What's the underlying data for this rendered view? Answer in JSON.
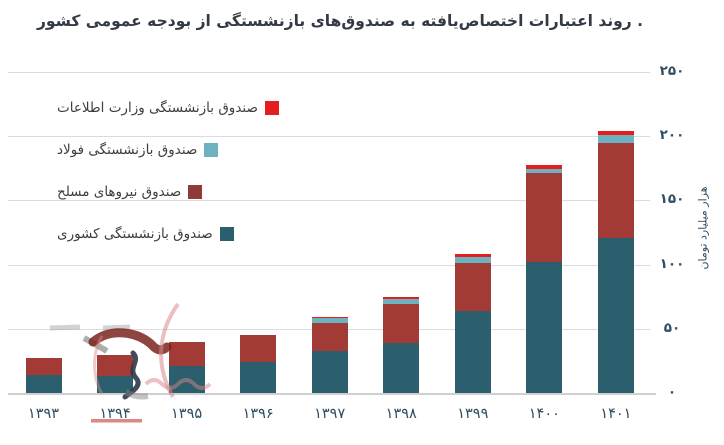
{
  "title": ". روند اعتبارات اختصاص‌یافته به صندوق‌های بازنشستگی از بودجه عمومی کشور",
  "y_axis": {
    "label": "هزار میلیارد تومان",
    "ticks": [
      {
        "value": 0,
        "label": "۰"
      },
      {
        "value": 50,
        "label": "۵۰"
      },
      {
        "value": 100,
        "label": "۱۰۰"
      },
      {
        "value": 150,
        "label": "۱۵۰"
      },
      {
        "value": 200,
        "label": "۲۰۰"
      },
      {
        "value": 250,
        "label": "۲۵۰"
      }
    ]
  },
  "legend": [
    {
      "label": "صندوق بازنشستگی وزارت اطلاعات",
      "color": "#e51d1d"
    },
    {
      "label": "صندوق بازنشستگی فولاد",
      "color": "#6cb2c0"
    },
    {
      "label": "صندوق نیروهای مسلح",
      "color": "#8f3a38"
    },
    {
      "label": "صندوق بازنشستگی کشوری",
      "color": "#2b5f6d"
    }
  ],
  "colors": {
    "grid": "#dcdcdc",
    "axis": "#cfcfcf",
    "tick_text": "#2e4d63",
    "title_text": "#323a46"
  },
  "chart_data": {
    "type": "bar",
    "stacked": true,
    "title": ". روند اعتبارات اختصاص‌یافته به صندوق‌های بازنشستگی از بودجه عمومی کشور",
    "xlabel": "",
    "ylabel": "هزار میلیارد تومان",
    "ylim": [
      0,
      250
    ],
    "grid": true,
    "legend_position": "left-inside",
    "categories": [
      "۱۳۹۳",
      "۱۳۹۴",
      "۱۳۹۵",
      "۱۳۹۶",
      "۱۳۹۷",
      "۱۳۹۸",
      "۱۳۹۹",
      "۱۴۰۰",
      "۱۴۰۱"
    ],
    "categories_latin": [
      1393,
      1394,
      1395,
      1396,
      1397,
      1398,
      1399,
      1400,
      1401
    ],
    "series": [
      {
        "name": "صندوق بازنشستگی کشوری",
        "color": "#2b5f6d",
        "values": [
          14,
          13.5,
          21,
          24,
          32.5,
          39,
          64,
          102,
          121
        ]
      },
      {
        "name": "صندوق نیروهای مسلح",
        "color": "#a23a36",
        "values": [
          13,
          16,
          19,
          21,
          22,
          30,
          37,
          69,
          74
        ]
      },
      {
        "name": "صندوق بازنشستگی فولاد",
        "color": "#6cb2c0",
        "values": [
          0,
          0,
          0,
          0,
          3.5,
          4,
          5,
          3.5,
          5.5
        ]
      },
      {
        "name": "صندوق بازنشستگی وزارت اطلاعات",
        "color": "#e51d1d",
        "values": [
          0,
          0,
          0,
          0,
          1.5,
          1.5,
          2.5,
          3,
          3.5
        ]
      }
    ]
  }
}
